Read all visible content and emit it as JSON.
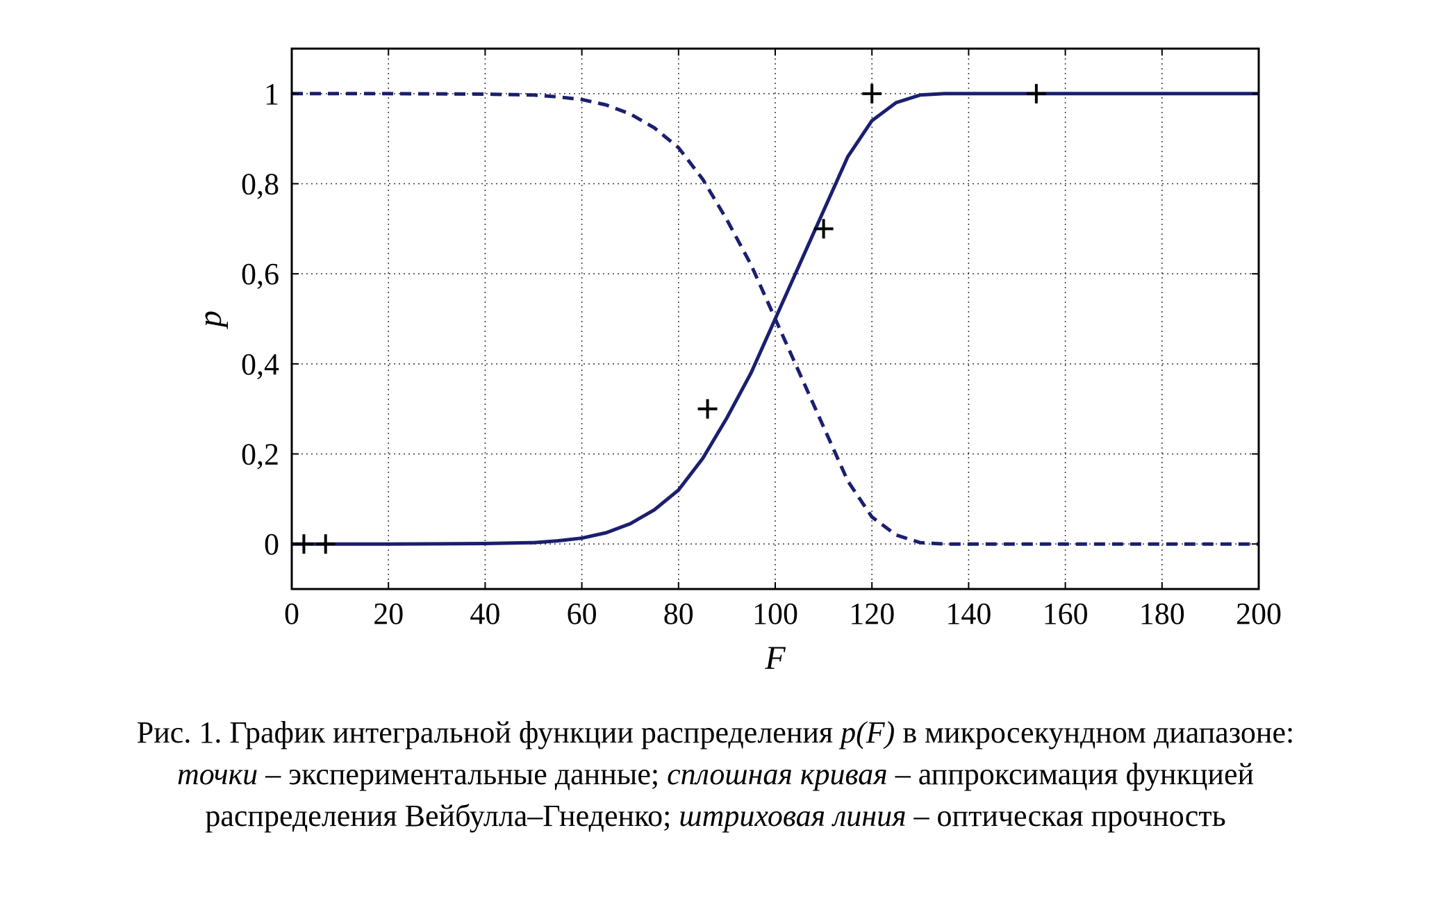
{
  "chart_data": {
    "type": "line",
    "xlabel": "F",
    "ylabel": "p",
    "xlim": [
      0,
      200
    ],
    "ylim": [
      -0.1,
      1.1
    ],
    "xticks": [
      0,
      20,
      40,
      60,
      80,
      100,
      120,
      140,
      160,
      180,
      200
    ],
    "xtick_labels": [
      "0",
      "20",
      "40",
      "60",
      "80",
      "100",
      "120",
      "140",
      "160",
      "180",
      "200"
    ],
    "yticks": [
      0,
      0.2,
      0.4,
      0.6,
      0.8,
      1
    ],
    "ytick_labels": [
      "0",
      "0,2",
      "0,4",
      "0,6",
      "0,8",
      "1"
    ],
    "grid": true,
    "color": "#1a1f6e",
    "points": {
      "x": [
        2.5,
        7,
        86,
        110,
        120,
        154
      ],
      "y": [
        0,
        0,
        0.3,
        0.7,
        1.0,
        1.0
      ]
    },
    "series": [
      {
        "style": "solid",
        "x": [
          0,
          20,
          40,
          50,
          55,
          60,
          65,
          70,
          75,
          80,
          85,
          90,
          95,
          100,
          105,
          110,
          115,
          120,
          125,
          130,
          135,
          140,
          160,
          180,
          200
        ],
        "y": [
          0,
          0,
          0.001,
          0.003,
          0.007,
          0.013,
          0.025,
          0.045,
          0.076,
          0.12,
          0.19,
          0.28,
          0.38,
          0.5,
          0.62,
          0.74,
          0.86,
          0.94,
          0.98,
          0.997,
          1,
          1,
          1,
          1,
          1
        ]
      },
      {
        "style": "dashed",
        "x": [
          0,
          20,
          40,
          50,
          55,
          60,
          65,
          70,
          75,
          80,
          85,
          90,
          95,
          100,
          105,
          110,
          115,
          120,
          125,
          130,
          135,
          140,
          160,
          180,
          200
        ],
        "y": [
          1,
          1,
          0.999,
          0.997,
          0.993,
          0.987,
          0.975,
          0.955,
          0.924,
          0.88,
          0.81,
          0.72,
          0.62,
          0.5,
          0.38,
          0.26,
          0.14,
          0.06,
          0.02,
          0.003,
          0,
          0,
          0,
          0,
          0
        ]
      }
    ]
  },
  "caption": {
    "line1_a": "Рис. 1. График интегральной функции распределения ",
    "line1_b": "p(F)",
    "line1_c": " в микросекундном диапазоне:",
    "line2_a": "точки",
    "line2_b": " – экспериментальные данные; ",
    "line2_c": "сплошная кривая",
    "line2_d": " – аппроксимация функцией",
    "line3_a": "распределения Вейбулла–Гнеденко; ",
    "line3_b": "штриховая линия",
    "line3_c": " – оптическая прочность"
  }
}
